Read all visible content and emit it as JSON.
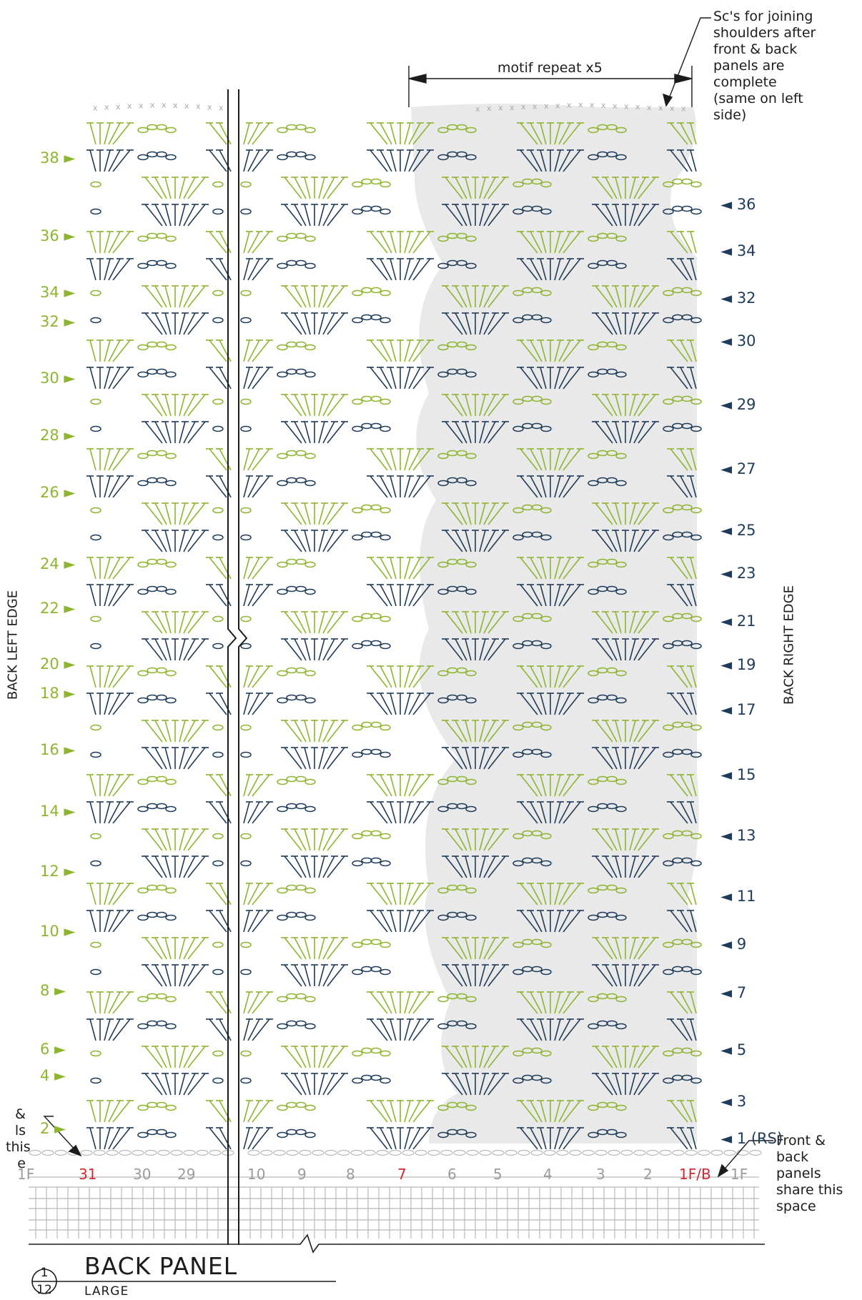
{
  "title": "BACK PANEL",
  "subtitle": "LARGE",
  "circle_top": "1",
  "circle_bottom": "12",
  "motif_label": "motif repeat x5",
  "note_top_right": [
    "Sc's for joining",
    "shoulders after",
    "front & back",
    "panels are",
    "complete",
    "(same on left",
    "side)"
  ],
  "note_left_partial": [
    "&",
    "ls",
    "this",
    "e"
  ],
  "note_right": [
    "Front &",
    "back",
    "panels",
    "share this",
    "space"
  ],
  "edge_left": "BACK LEFT EDGE",
  "edge_right": "BACK RIGHT EDGE",
  "left_rows": [
    {
      "label": "38",
      "color": "green"
    },
    {
      "label": "36",
      "color": "green"
    },
    {
      "label": "34",
      "color": "green"
    },
    {
      "label": "32",
      "color": "green"
    },
    {
      "label": "30",
      "color": "green"
    },
    {
      "label": "28",
      "color": "green"
    },
    {
      "label": "26",
      "color": "green"
    },
    {
      "label": "24",
      "color": "green"
    },
    {
      "label": "22",
      "color": "green"
    },
    {
      "label": "20",
      "color": "green"
    },
    {
      "label": "18",
      "color": "green"
    },
    {
      "label": "16",
      "color": "green"
    },
    {
      "label": "14",
      "color": "green"
    },
    {
      "label": "12",
      "color": "green"
    },
    {
      "label": "10",
      "color": "green"
    },
    {
      "label": "8",
      "color": "green"
    },
    {
      "label": "6",
      "color": "green"
    },
    {
      "label": "4",
      "color": "green"
    },
    {
      "label": "2",
      "color": "green"
    }
  ],
  "right_rows": [
    {
      "label": "36",
      "color": "navy"
    },
    {
      "label": "34",
      "color": "navy"
    },
    {
      "label": "32",
      "color": "navy"
    },
    {
      "label": "30",
      "color": "navy"
    },
    {
      "label": "29",
      "color": "navy"
    },
    {
      "label": "27",
      "color": "navy"
    },
    {
      "label": "25",
      "color": "navy"
    },
    {
      "label": "23",
      "color": "navy"
    },
    {
      "label": "21",
      "color": "navy"
    },
    {
      "label": "19",
      "color": "navy"
    },
    {
      "label": "17",
      "color": "navy"
    },
    {
      "label": "15",
      "color": "navy"
    },
    {
      "label": "13",
      "color": "navy"
    },
    {
      "label": "11",
      "color": "navy"
    },
    {
      "label": "9",
      "color": "navy"
    },
    {
      "label": "7",
      "color": "navy"
    },
    {
      "label": "5",
      "color": "navy"
    },
    {
      "label": "3",
      "color": "navy"
    },
    {
      "label": "1 (RS)",
      "color": "navy"
    }
  ],
  "foundation": [
    {
      "label": "1F",
      "color": "gray"
    },
    {
      "label": "31",
      "color": "red"
    },
    {
      "label": "30",
      "color": "gray"
    },
    {
      "label": "29",
      "color": "gray"
    },
    {
      "label": "10",
      "color": "gray"
    },
    {
      "label": "9",
      "color": "gray"
    },
    {
      "label": "8",
      "color": "gray"
    },
    {
      "label": "7",
      "color": "red"
    },
    {
      "label": "6",
      "color": "gray"
    },
    {
      "label": "5",
      "color": "gray"
    },
    {
      "label": "4",
      "color": "gray"
    },
    {
      "label": "3",
      "color": "gray"
    },
    {
      "label": "2",
      "color": "gray"
    },
    {
      "label": "1F/B",
      "color": "red"
    },
    {
      "label": "1F",
      "color": "gray"
    }
  ],
  "colors": {
    "green": "#8db530",
    "navy": "#1f3b5a",
    "red": "#d7262c",
    "gray": "#9b9b9b",
    "shade": "#e9e9e9"
  }
}
